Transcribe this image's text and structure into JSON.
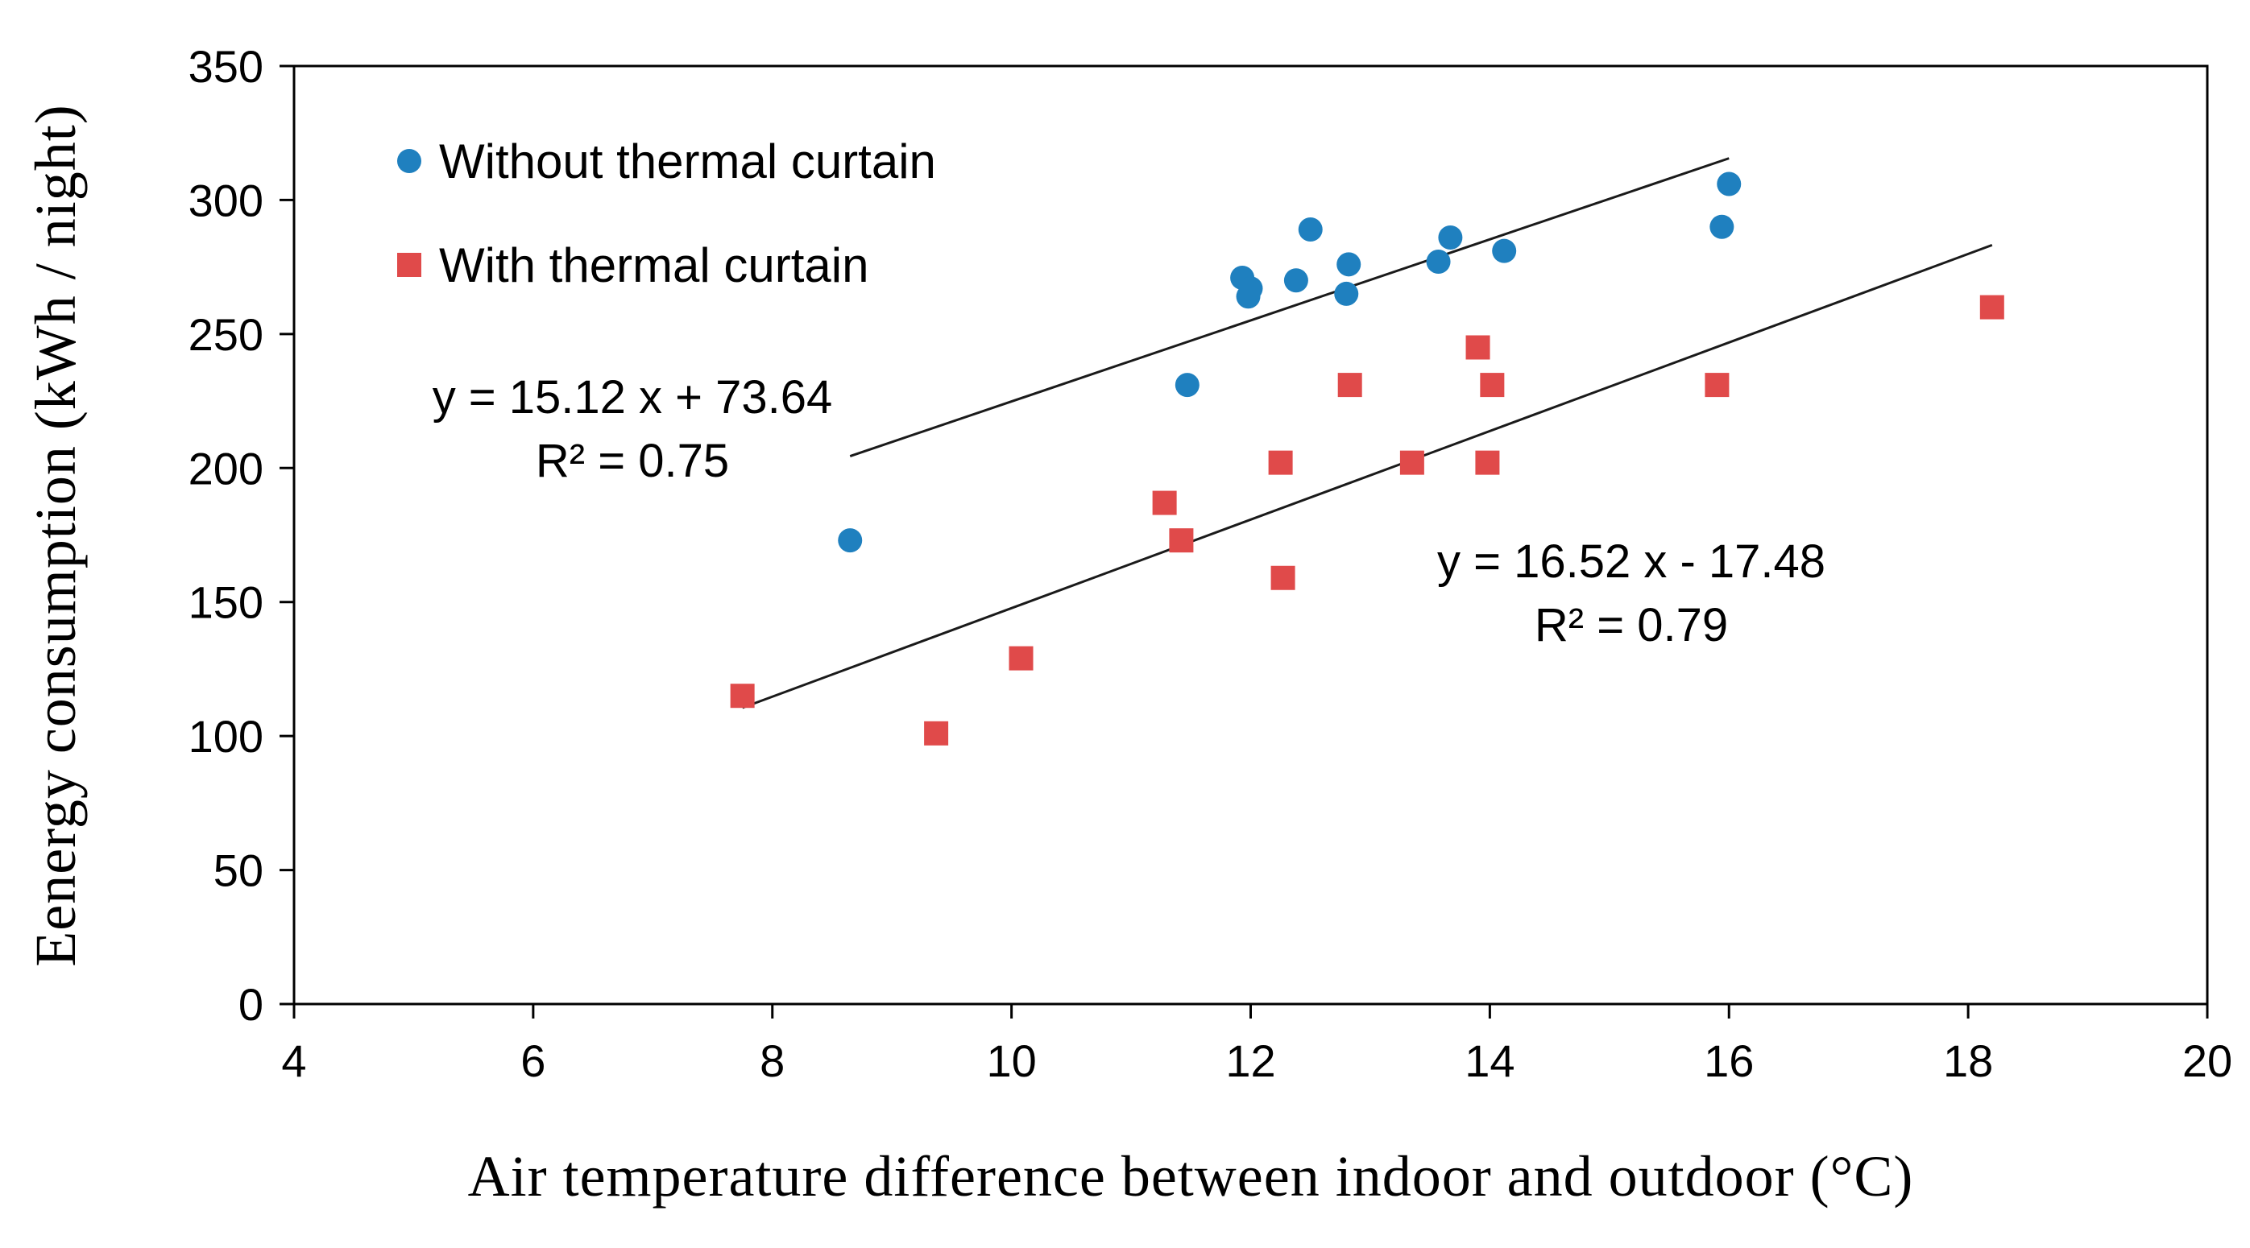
{
  "chart_data": {
    "type": "scatter",
    "title": "",
    "xlabel": "Air temperature difference between indoor and outdoor (°C)",
    "ylabel": "Eenergy consumption (kWh / night)",
    "xlim": [
      4,
      20
    ],
    "ylim": [
      0,
      350
    ],
    "xticks": [
      4,
      6,
      8,
      10,
      12,
      14,
      16,
      18,
      20
    ],
    "yticks": [
      0,
      50,
      100,
      150,
      200,
      250,
      300,
      350
    ],
    "grid": false,
    "legend_position": "top-left",
    "series": [
      {
        "name": "Without thermal curtain",
        "marker": "circle",
        "color": "#1f80bf",
        "points": [
          {
            "x": 8.65,
            "y": 173
          },
          {
            "x": 11.47,
            "y": 231
          },
          {
            "x": 11.93,
            "y": 271
          },
          {
            "x": 11.98,
            "y": 264
          },
          {
            "x": 12.0,
            "y": 267
          },
          {
            "x": 12.38,
            "y": 270
          },
          {
            "x": 12.5,
            "y": 289
          },
          {
            "x": 12.8,
            "y": 265
          },
          {
            "x": 12.82,
            "y": 276
          },
          {
            "x": 13.57,
            "y": 277
          },
          {
            "x": 13.67,
            "y": 286
          },
          {
            "x": 14.12,
            "y": 281
          },
          {
            "x": 15.94,
            "y": 290
          },
          {
            "x": 16.0,
            "y": 306
          }
        ],
        "trendline": {
          "slope": 15.12,
          "intercept": 73.64,
          "x_range": [
            8.65,
            16.0
          ]
        }
      },
      {
        "name": "With thermal curtain",
        "marker": "square",
        "color": "#e04a4a",
        "points": [
          {
            "x": 7.75,
            "y": 115
          },
          {
            "x": 9.37,
            "y": 101
          },
          {
            "x": 10.08,
            "y": 129
          },
          {
            "x": 11.28,
            "y": 187
          },
          {
            "x": 11.42,
            "y": 173
          },
          {
            "x": 12.25,
            "y": 202
          },
          {
            "x": 12.27,
            "y": 159
          },
          {
            "x": 12.83,
            "y": 231
          },
          {
            "x": 13.35,
            "y": 202
          },
          {
            "x": 13.9,
            "y": 245
          },
          {
            "x": 13.98,
            "y": 202
          },
          {
            "x": 14.02,
            "y": 231
          },
          {
            "x": 15.9,
            "y": 231
          },
          {
            "x": 18.2,
            "y": 260
          }
        ],
        "trendline": {
          "slope": 16.52,
          "intercept": -17.48,
          "x_range": [
            7.75,
            18.2
          ]
        }
      }
    ],
    "annotations": [
      {
        "series": "Without thermal curtain",
        "equation": "y = 15.12 x + 73.64",
        "r2": "R² = 0.75"
      },
      {
        "series": "With thermal curtain",
        "equation": "y = 16.52 x - 17.48",
        "r2": "R² = 0.79"
      }
    ]
  }
}
